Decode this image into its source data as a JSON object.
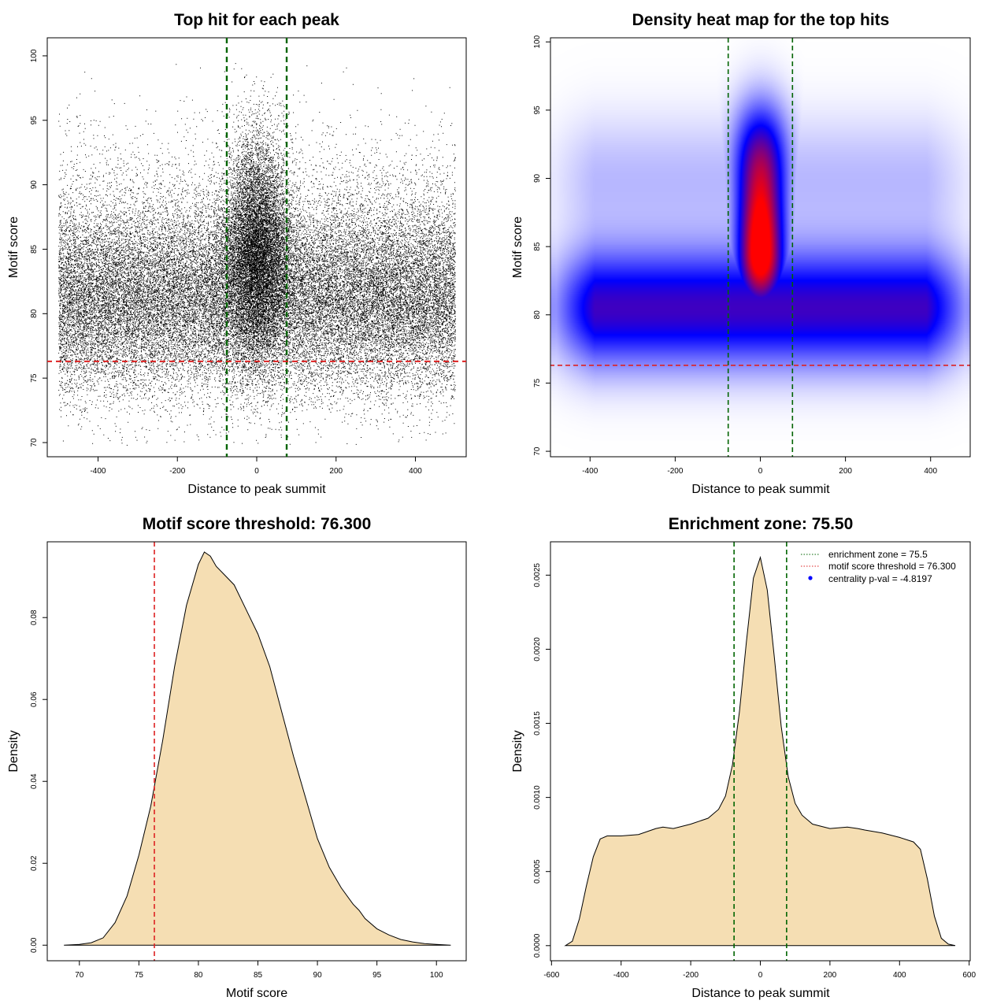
{
  "chart_data": [
    {
      "type": "scatter",
      "title": "Top hit for each peak",
      "xlabel": "Distance to peak summit",
      "ylabel": "Motif score",
      "xlim": [
        -528,
        528
      ],
      "ylim": [
        68.9,
        101.4
      ],
      "x_ticks": [
        "-400",
        "-200",
        "0",
        "200",
        "400"
      ],
      "y_ticks": [
        "70",
        "75",
        "80",
        "85",
        "90",
        "95",
        "100"
      ],
      "point_color": "#000000",
      "point_count": 46000,
      "distribution": {
        "x_range": [
          -500,
          500
        ],
        "background_score_mean": 81,
        "background_score_sd": 3.6,
        "central_zone": [
          -75.5,
          75.5
        ],
        "central_score_mean": 85,
        "central_score_sd": 4.2
      },
      "vlines": {
        "x": [
          -75.5,
          75.5
        ],
        "color": "#006400",
        "style": "dashed"
      },
      "hline": {
        "y": 76.3,
        "color": "#dd2222",
        "style": "dashed"
      }
    },
    {
      "type": "heatmap",
      "title": "Density heat map for the top hits",
      "xlabel": "Distance to peak summit",
      "ylabel": "Motif score",
      "xlim": [
        -493,
        493
      ],
      "ylim": [
        69.6,
        100.3
      ],
      "x_ticks": [
        "-400",
        "-200",
        "0",
        "200",
        "400"
      ],
      "y_ticks": [
        "70",
        "75",
        "80",
        "85",
        "90",
        "95",
        "100"
      ],
      "colors": {
        "low": "#ffffff",
        "mid": "#0000ff",
        "high": "#ff0000"
      },
      "density_peak": {
        "x": 0,
        "y": 84.5
      },
      "background_band_y": 80.5,
      "vlines": {
        "x": [
          -75.5,
          75.5
        ],
        "color": "#006400",
        "style": "dashed"
      },
      "hline": {
        "y": 76.3,
        "color": "#dd2222",
        "style": "dashed"
      }
    },
    {
      "type": "area",
      "title": "Motif score threshold: 76.300",
      "xlabel": "Motif score",
      "ylabel": "Density",
      "xlim": [
        67.3,
        102.5
      ],
      "ylim": [
        -0.0038,
        0.0985
      ],
      "x_ticks": [
        "70",
        "75",
        "80",
        "85",
        "90",
        "95",
        "100"
      ],
      "y_ticks": [
        "0.00",
        "0.02",
        "0.04",
        "0.06",
        "0.08"
      ],
      "fill_color": "#f5deb3",
      "x": [
        68.7,
        70,
        71,
        72,
        73,
        74,
        75,
        76,
        77,
        78,
        79,
        80,
        80.5,
        81,
        81.5,
        82,
        83,
        84,
        85,
        86,
        87,
        88,
        89,
        90,
        91,
        92,
        93,
        93.5,
        94,
        95,
        96,
        97,
        98,
        99,
        100,
        101.2
      ],
      "y": [
        0,
        0.0002,
        0.0006,
        0.0018,
        0.0055,
        0.012,
        0.022,
        0.034,
        0.05,
        0.068,
        0.083,
        0.093,
        0.096,
        0.095,
        0.0925,
        0.091,
        0.088,
        0.082,
        0.076,
        0.068,
        0.057,
        0.046,
        0.036,
        0.026,
        0.019,
        0.014,
        0.01,
        0.0085,
        0.0065,
        0.004,
        0.0025,
        0.0014,
        0.0008,
        0.0004,
        0.0002,
        0
      ],
      "vline": {
        "x": 76.3,
        "color": "#dd2222",
        "style": "dashed"
      }
    },
    {
      "type": "area",
      "title": "Enrichment zone: 75.50",
      "xlabel": "Distance to peak summit",
      "ylabel": "Density",
      "xlim": [
        -603,
        603
      ],
      "ylim": [
        -0.000102,
        0.002725
      ],
      "x_ticks": [
        "-600",
        "-400",
        "-200",
        "0",
        "200",
        "400",
        "600"
      ],
      "y_ticks": [
        "0.0000",
        "0.0005",
        "0.0010",
        "0.0015",
        "0.0020",
        "0.0025"
      ],
      "fill_color": "#f5deb3",
      "x": [
        -560,
        -540,
        -520,
        -500,
        -480,
        -460,
        -440,
        -400,
        -350,
        -300,
        -280,
        -250,
        -200,
        -150,
        -120,
        -100,
        -80,
        -60,
        -40,
        -20,
        0,
        20,
        40,
        60,
        80,
        100,
        120,
        150,
        200,
        250,
        280,
        300,
        350,
        400,
        440,
        460,
        480,
        500,
        520,
        540,
        560
      ],
      "y": [
        0,
        3e-05,
        0.00018,
        0.0004,
        0.0006,
        0.00072,
        0.00074,
        0.00074,
        0.00075,
        0.00079,
        0.0008,
        0.00079,
        0.00082,
        0.00086,
        0.00092,
        0.00101,
        0.00122,
        0.00158,
        0.00205,
        0.00248,
        0.00262,
        0.0024,
        0.00195,
        0.00148,
        0.00114,
        0.00096,
        0.00088,
        0.00082,
        0.00079,
        0.0008,
        0.00079,
        0.00078,
        0.00076,
        0.00073,
        0.0007,
        0.00065,
        0.00045,
        0.0002,
        5e-05,
        1e-05,
        0
      ],
      "vlines": {
        "x": [
          -75.5,
          75.5
        ],
        "color": "#006400",
        "style": "dashed"
      },
      "legend": {
        "position": "top-right",
        "entries": [
          {
            "label": "enrichment zone = 75.5",
            "color": "#006400",
            "symbol": "dotted-line"
          },
          {
            "label": "motif score threshold = 76.300",
            "color": "#dd2222",
            "symbol": "dotted-line"
          },
          {
            "label": "centrality p-val = -4.8197",
            "color": "#0000ff",
            "symbol": "point"
          }
        ]
      }
    }
  ]
}
